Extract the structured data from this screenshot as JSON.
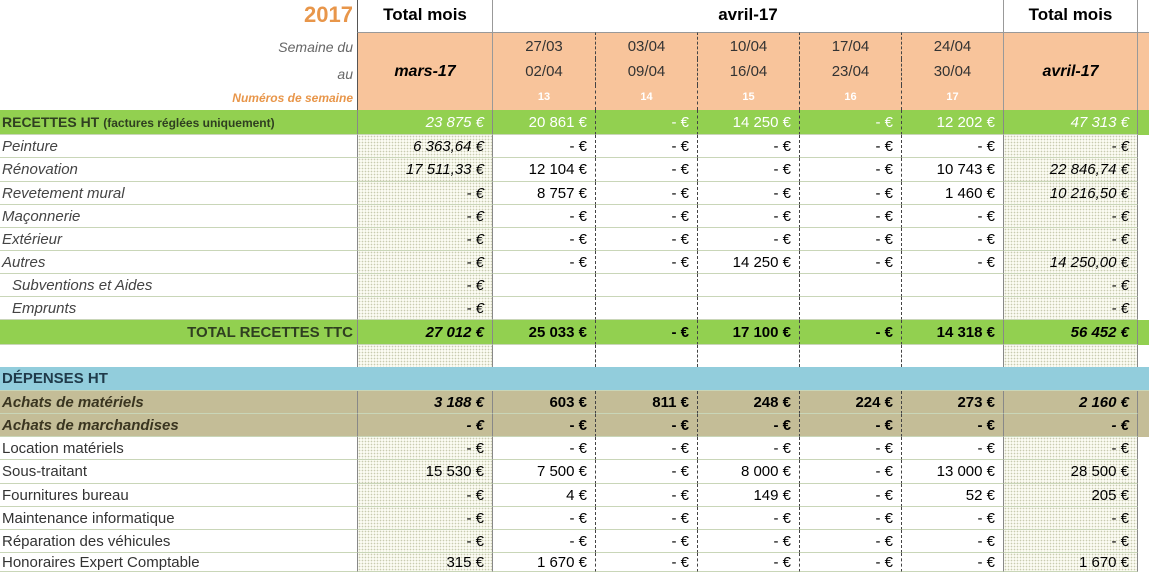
{
  "header": {
    "year": "2017",
    "total_label_1": "Total mois",
    "month_span": "avril-17",
    "total_label_2": "Total mois",
    "week_from_label": "Semaine du",
    "week_to_label": "au",
    "week_number_label": "Numéros de semaine",
    "total_month_1": "mars-17",
    "total_month_2": "avril-17",
    "weeks": [
      {
        "from": "27/03",
        "to": "02/04",
        "number": 13
      },
      {
        "from": "03/04",
        "to": "09/04",
        "number": 14
      },
      {
        "from": "10/04",
        "to": "16/04",
        "number": 15
      },
      {
        "from": "17/04",
        "to": "23/04",
        "number": 16
      },
      {
        "from": "24/04",
        "to": "30/04",
        "number": 17
      }
    ]
  },
  "rows": [
    {
      "kind": "section",
      "label": "RECETTES HT",
      "label_note": "(factures réglées uniquement)",
      "cells": [
        "23 875 €",
        "20 861 €",
        "- €",
        "14 250 €",
        "- €",
        "12 202 €",
        "47 313 €"
      ]
    },
    {
      "kind": "item",
      "label": "Peinture",
      "cells": [
        "6 363,64 €",
        "- €",
        "- €",
        "- €",
        "- €",
        "- €",
        "- €"
      ]
    },
    {
      "kind": "item",
      "label": "Rénovation",
      "cells": [
        "17 511,33 €",
        "12 104 €",
        "- €",
        "- €",
        "- €",
        "10 743 €",
        "22 846,74 €"
      ]
    },
    {
      "kind": "item",
      "label": "Revetement mural",
      "cells": [
        "- €",
        "8 757 €",
        "- €",
        "- €",
        "- €",
        "1 460 €",
        "10 216,50 €"
      ]
    },
    {
      "kind": "item",
      "label": "Maçonnerie",
      "cells": [
        "- €",
        "- €",
        "- €",
        "- €",
        "- €",
        "- €",
        "- €"
      ]
    },
    {
      "kind": "item",
      "label": "Extérieur",
      "cells": [
        "- €",
        "- €",
        "- €",
        "- €",
        "- €",
        "- €",
        "- €"
      ]
    },
    {
      "kind": "item",
      "label": "Autres",
      "cells": [
        "- €",
        "- €",
        "- €",
        "14 250 €",
        "- €",
        "- €",
        "14 250,00 €"
      ]
    },
    {
      "kind": "sub",
      "label": "Subventions et Aides",
      "cells": [
        "- €",
        null,
        null,
        null,
        null,
        null,
        "- €"
      ]
    },
    {
      "kind": "sub",
      "label": "Emprunts",
      "cells": [
        "- €",
        null,
        null,
        null,
        null,
        null,
        "- €"
      ]
    },
    {
      "kind": "total",
      "label": "TOTAL RECETTES TTC",
      "cells": [
        "27 012 €",
        "25 033 €",
        "- €",
        "17 100 €",
        "- €",
        "14 318 €",
        "56 452 €"
      ]
    },
    {
      "kind": "blank",
      "label": null,
      "cells": [
        null,
        null,
        null,
        null,
        null,
        null,
        null
      ]
    },
    {
      "kind": "heading",
      "label": "DÉPENSES HT",
      "cells": [
        null,
        null,
        null,
        null,
        null,
        null,
        null
      ]
    },
    {
      "kind": "group",
      "label": "Achats de matériels",
      "cells": [
        "3 188 €",
        "603 €",
        "811 €",
        "248 €",
        "224 €",
        "273 €",
        "2 160 €"
      ]
    },
    {
      "kind": "group",
      "label": "Achats de marchandises",
      "cells": [
        "- €",
        "- €",
        "- €",
        "- €",
        "- €",
        "- €",
        "- €"
      ]
    },
    {
      "kind": "expense",
      "label": "Location matériels",
      "cells": [
        "- €",
        "- €",
        "- €",
        "- €",
        "- €",
        "- €",
        "- €"
      ]
    },
    {
      "kind": "expense",
      "label": "Sous-traitant",
      "cells": [
        "15 530 €",
        "7 500 €",
        "- €",
        "8 000 €",
        "- €",
        "13 000 €",
        "28 500 €"
      ]
    },
    {
      "kind": "expense",
      "label": "Fournitures bureau",
      "cells": [
        "- €",
        "4 €",
        "- €",
        "149 €",
        "- €",
        "52 €",
        "205 €"
      ]
    },
    {
      "kind": "expense",
      "label": "Maintenance informatique",
      "cells": [
        "- €",
        "- €",
        "- €",
        "- €",
        "- €",
        "- €",
        "- €"
      ]
    },
    {
      "kind": "expense",
      "label": "Réparation des véhicules",
      "cells": [
        "- €",
        "- €",
        "- €",
        "- €",
        "- €",
        "- €",
        "- €"
      ]
    },
    {
      "kind": "expense",
      "label": "Honoraires Expert Comptable",
      "cells": [
        "315 €",
        "1 670 €",
        "- €",
        "- €",
        "- €",
        "- €",
        "1 670 €"
      ]
    }
  ]
}
